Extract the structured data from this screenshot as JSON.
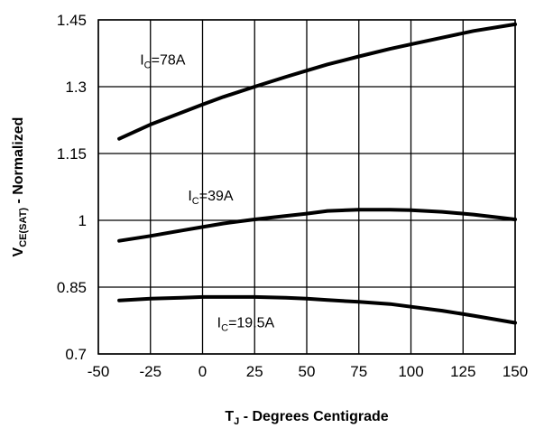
{
  "chart_data": {
    "type": "line",
    "title": "",
    "xlabel": "T_J - Degrees Centigrade",
    "xlabel_parts": {
      "main": "T",
      "sub": "J",
      "rest": " - Degrees Centigrade"
    },
    "ylabel": "V_CE(SAT) - Normalized",
    "ylabel_parts": {
      "main": "V",
      "sub": "CE(SAT)",
      "rest": " - Normalized"
    },
    "xlim": [
      -50,
      150
    ],
    "ylim": [
      0.7,
      1.45
    ],
    "x_ticks": [
      -50,
      -25,
      0,
      25,
      50,
      75,
      100,
      125,
      150
    ],
    "x_tick_labels": [
      "-50",
      "-25",
      "0",
      "25",
      "50",
      "75",
      "100",
      "125",
      "150"
    ],
    "y_ticks": [
      0.7,
      0.85,
      1,
      1.15,
      1.3,
      1.45
    ],
    "y_tick_labels": [
      "0.7",
      "0.85",
      "1",
      "1.15",
      "1.3",
      "1.45"
    ],
    "grid": true,
    "series": [
      {
        "name": "IC=78A",
        "label_parts": {
          "main": "I",
          "sub": "C",
          "rest": "=78A"
        },
        "label_anchor": {
          "x": -30,
          "y": 1.35
        },
        "x": [
          -40,
          -25,
          -10,
          0,
          10,
          25,
          40,
          50,
          60,
          75,
          90,
          100,
          115,
          130,
          150
        ],
        "y": [
          1.183,
          1.215,
          1.242,
          1.26,
          1.277,
          1.3,
          1.322,
          1.336,
          1.35,
          1.368,
          1.385,
          1.395,
          1.41,
          1.425,
          1.44
        ]
      },
      {
        "name": "IC=39A",
        "label_parts": {
          "main": "I",
          "sub": "C",
          "rest": "=39A"
        },
        "label_anchor": {
          "x": -7,
          "y": 1.045
        },
        "x": [
          -40,
          -25,
          -10,
          0,
          10,
          25,
          40,
          50,
          60,
          75,
          90,
          100,
          115,
          130,
          150
        ],
        "y": [
          0.954,
          0.965,
          0.977,
          0.985,
          0.993,
          1.002,
          1.01,
          1.015,
          1.021,
          1.024,
          1.024,
          1.023,
          1.019,
          1.013,
          1.002
        ]
      },
      {
        "name": "IC=19.5A",
        "label_parts": {
          "main": "I",
          "sub": "C",
          "rest": "=19.5A"
        },
        "label_anchor": {
          "x": 7,
          "y": 0.76
        },
        "x": [
          -40,
          -25,
          -10,
          0,
          10,
          25,
          40,
          50,
          60,
          75,
          90,
          100,
          115,
          130,
          150
        ],
        "y": [
          0.82,
          0.824,
          0.826,
          0.828,
          0.828,
          0.828,
          0.826,
          0.824,
          0.821,
          0.817,
          0.812,
          0.806,
          0.797,
          0.786,
          0.77
        ]
      }
    ]
  }
}
